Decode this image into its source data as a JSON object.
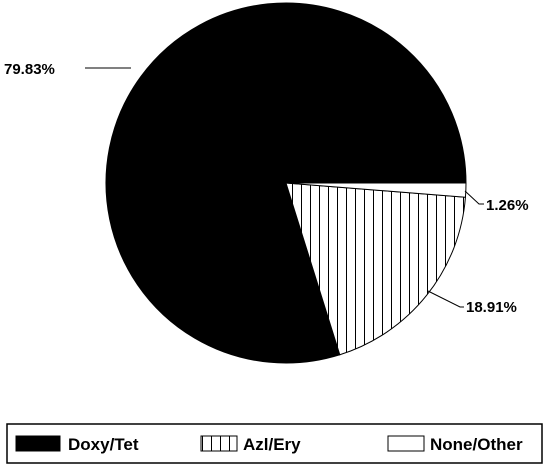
{
  "chart_data": {
    "type": "pie",
    "series": [
      {
        "name": "Doxy/Tet",
        "value": 79.83,
        "label": "79.83%",
        "fill": "solid",
        "color": "#000000"
      },
      {
        "name": "Azl/Ery",
        "value": 18.91,
        "label": "18.91%",
        "fill": "vertical-hatch",
        "color": "#000000"
      },
      {
        "name": "None/Other",
        "value": 1.26,
        "label": "1.26%",
        "fill": "none",
        "color": "#ffffff"
      }
    ],
    "legend_position": "bottom"
  }
}
